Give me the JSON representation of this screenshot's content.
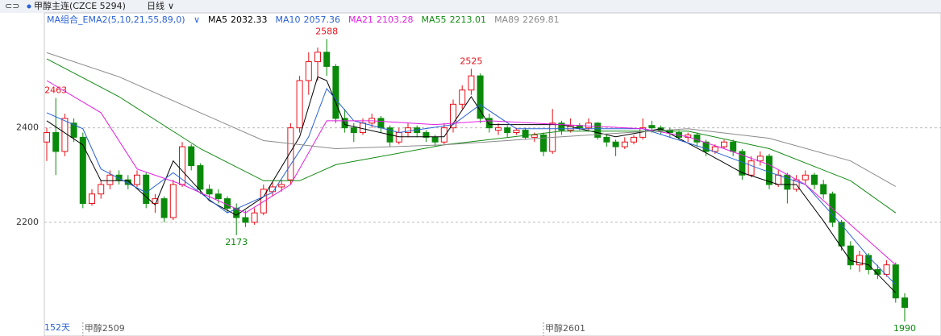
{
  "chart_data": {
    "type": "candlestick",
    "title": "甲醇主连(CZCE 5294)",
    "period": "日线",
    "indicator": "MA组合_EMA2(5,10,21,55,89,0)",
    "count_label": "152天",
    "up_color": "#e8101a",
    "down_color": "#0a8a0a",
    "ylim": [
      1985,
      2645
    ],
    "yticks": [
      2200,
      2400
    ],
    "grid": true,
    "categories": [
      null,
      null,
      null,
      null,
      "甲醇2509",
      null,
      null,
      null,
      null,
      null,
      null,
      null,
      null,
      null,
      null,
      null,
      null,
      null,
      null,
      null,
      null,
      null,
      null,
      null,
      null,
      null,
      null,
      null,
      null,
      null,
      null,
      null,
      null,
      null,
      null,
      null,
      null,
      null,
      null,
      null,
      null,
      null,
      null,
      null,
      null,
      null,
      null,
      null,
      null,
      null,
      null,
      null,
      null,
      null,
      null,
      "甲醇2601",
      null,
      null,
      null,
      null,
      null,
      null,
      null,
      null,
      null,
      null,
      null,
      null,
      null,
      null,
      null,
      null,
      null,
      null,
      null,
      null,
      null,
      null,
      null,
      null,
      null,
      null,
      null,
      null,
      null,
      null,
      null,
      null,
      null,
      null,
      null,
      null,
      null,
      null,
      null,
      null
    ],
    "candles": [
      [
        2370,
        2400,
        2330,
        2390
      ],
      [
        2390,
        2463,
        2300,
        2350
      ],
      [
        2350,
        2430,
        2340,
        2420
      ],
      [
        2410,
        2420,
        2370,
        2380
      ],
      [
        2380,
        2390,
        2230,
        2240
      ],
      [
        2240,
        2270,
        2235,
        2260
      ],
      [
        2260,
        2290,
        2250,
        2280
      ],
      [
        2280,
        2310,
        2270,
        2300
      ],
      [
        2300,
        2310,
        2280,
        2290
      ],
      [
        2290,
        2300,
        2270,
        2280
      ],
      [
        2280,
        2310,
        2275,
        2300
      ],
      [
        2300,
        2305,
        2230,
        2240
      ],
      [
        2240,
        2260,
        2220,
        2250
      ],
      [
        2250,
        2255,
        2200,
        2210
      ],
      [
        2210,
        2290,
        2205,
        2280
      ],
      [
        2280,
        2370,
        2275,
        2360
      ],
      [
        2360,
        2365,
        2310,
        2320
      ],
      [
        2320,
        2325,
        2260,
        2270
      ],
      [
        2270,
        2280,
        2250,
        2260
      ],
      [
        2260,
        2270,
        2240,
        2250
      ],
      [
        2250,
        2255,
        2220,
        2230
      ],
      [
        2230,
        2240,
        2173,
        2210
      ],
      [
        2210,
        2225,
        2190,
        2200
      ],
      [
        2200,
        2230,
        2195,
        2220
      ],
      [
        2220,
        2280,
        2215,
        2270
      ],
      [
        2265,
        2285,
        2255,
        2275
      ],
      [
        2275,
        2290,
        2265,
        2280
      ],
      [
        2290,
        2410,
        2280,
        2400
      ],
      [
        2400,
        2510,
        2390,
        2500
      ],
      [
        2500,
        2560,
        2470,
        2540
      ],
      [
        2540,
        2570,
        2500,
        2560
      ],
      [
        2560,
        2588,
        2510,
        2530
      ],
      [
        2530,
        2535,
        2410,
        2420
      ],
      [
        2420,
        2440,
        2390,
        2400
      ],
      [
        2400,
        2410,
        2370,
        2390
      ],
      [
        2390,
        2420,
        2385,
        2410
      ],
      [
        2410,
        2430,
        2400,
        2420
      ],
      [
        2420,
        2425,
        2390,
        2400
      ],
      [
        2400,
        2405,
        2360,
        2370
      ],
      [
        2370,
        2400,
        2365,
        2390
      ],
      [
        2390,
        2410,
        2380,
        2400
      ],
      [
        2400,
        2405,
        2380,
        2390
      ],
      [
        2390,
        2395,
        2370,
        2380
      ],
      [
        2380,
        2385,
        2360,
        2370
      ],
      [
        2370,
        2410,
        2365,
        2400
      ],
      [
        2400,
        2460,
        2390,
        2450
      ],
      [
        2450,
        2490,
        2440,
        2480
      ],
      [
        2480,
        2525,
        2470,
        2510
      ],
      [
        2510,
        2515,
        2410,
        2420
      ],
      [
        2420,
        2430,
        2390,
        2400
      ],
      [
        2395,
        2410,
        2385,
        2400
      ],
      [
        2400,
        2405,
        2380,
        2390
      ],
      [
        2390,
        2400,
        2385,
        2395
      ],
      [
        2395,
        2400,
        2375,
        2380
      ],
      [
        2380,
        2390,
        2370,
        2385
      ],
      [
        2385,
        2390,
        2340,
        2350
      ],
      [
        2350,
        2440,
        2345,
        2410
      ],
      [
        2410,
        2415,
        2385,
        2395
      ],
      [
        2395,
        2420,
        2390,
        2405
      ],
      [
        2405,
        2410,
        2395,
        2400
      ],
      [
        2400,
        2420,
        2395,
        2410
      ],
      [
        2410,
        2412,
        2375,
        2380
      ],
      [
        2380,
        2385,
        2360,
        2370
      ],
      [
        2370,
        2375,
        2340,
        2360
      ],
      [
        2360,
        2380,
        2355,
        2370
      ],
      [
        2370,
        2385,
        2365,
        2380
      ],
      [
        2380,
        2420,
        2375,
        2400
      ],
      [
        2405,
        2415,
        2390,
        2400
      ],
      [
        2400,
        2405,
        2385,
        2395
      ],
      [
        2395,
        2400,
        2380,
        2390
      ],
      [
        2390,
        2395,
        2375,
        2380
      ],
      [
        2380,
        2390,
        2370,
        2385
      ],
      [
        2385,
        2390,
        2360,
        2370
      ],
      [
        2370,
        2375,
        2340,
        2350
      ],
      [
        2350,
        2365,
        2345,
        2360
      ],
      [
        2360,
        2375,
        2355,
        2370
      ],
      [
        2370,
        2375,
        2340,
        2350
      ],
      [
        2350,
        2355,
        2290,
        2300
      ],
      [
        2300,
        2340,
        2295,
        2330
      ],
      [
        2330,
        2350,
        2320,
        2340
      ],
      [
        2340,
        2345,
        2270,
        2280
      ],
      [
        2280,
        2310,
        2275,
        2300
      ],
      [
        2300,
        2305,
        2240,
        2270
      ],
      [
        2270,
        2300,
        2265,
        2290
      ],
      [
        2290,
        2310,
        2280,
        2300
      ],
      [
        2300,
        2305,
        2270,
        2280
      ],
      [
        2280,
        2290,
        2250,
        2260
      ],
      [
        2260,
        2265,
        2190,
        2200
      ],
      [
        2200,
        2205,
        2140,
        2150
      ],
      [
        2150,
        2160,
        2100,
        2110
      ],
      [
        2110,
        2140,
        2095,
        2130
      ],
      [
        2130,
        2135,
        2090,
        2100
      ],
      [
        2100,
        2110,
        2080,
        2090
      ],
      [
        2090,
        2120,
        2085,
        2110
      ],
      [
        2110,
        2115,
        2030,
        2040
      ],
      [
        2040,
        2050,
        1990,
        2020
      ]
    ],
    "annotations": [
      {
        "candle": 1,
        "field": "high"
      },
      {
        "candle": 21,
        "field": "low"
      },
      {
        "candle": 31,
        "field": "high"
      },
      {
        "candle": 47,
        "field": "high"
      },
      {
        "candle": 95,
        "field": "low"
      }
    ],
    "ma_lines": [
      {
        "name": "MA5",
        "color": "#000000",
        "latest": 2032.33,
        "x": [
          0,
          4,
          6,
          9,
          12,
          14,
          18,
          21,
          24,
          28,
          30,
          31,
          33,
          39,
          44,
          47,
          49,
          57,
          63,
          68,
          73,
          77,
          81,
          83,
          86,
          89,
          91,
          94
        ],
        "values": [
          2415,
          2364,
          2288,
          2288,
          2237,
          2330,
          2246,
          2215,
          2254,
          2381,
          2508,
          2500,
          2407,
          2381,
          2381,
          2466,
          2407,
          2407,
          2381,
          2398,
          2347,
          2305,
          2280,
          2280,
          2203,
          2119,
          2110,
          2051
        ]
      },
      {
        "name": "MA10",
        "color": "#2a62d6",
        "latest": 2057.36,
        "x": [
          0,
          4,
          6,
          11,
          14,
          20,
          25,
          29,
          31,
          34,
          39,
          45,
          48,
          52,
          59,
          66,
          73,
          79,
          84,
          88,
          91,
          94
        ],
        "values": [
          2432,
          2398,
          2313,
          2263,
          2305,
          2220,
          2263,
          2381,
          2483,
          2415,
          2390,
          2407,
          2449,
          2398,
          2398,
          2398,
          2356,
          2313,
          2280,
          2195,
          2127,
          2068
        ]
      },
      {
        "name": "MA21",
        "color": "#e21ee2",
        "latest": 2103.28,
        "x": [
          0,
          6,
          10,
          15,
          22,
          27,
          31,
          36,
          43,
          49,
          57,
          66,
          71,
          75,
          80,
          84,
          89,
          94
        ],
        "values": [
          2500,
          2432,
          2313,
          2280,
          2220,
          2280,
          2415,
          2415,
          2407,
          2415,
          2407,
          2398,
          2381,
          2356,
          2322,
          2280,
          2195,
          2110
        ]
      },
      {
        "name": "MA55",
        "color": "#138a13",
        "latest": 2213.01,
        "x": [
          0,
          8,
          17,
          24,
          28,
          32,
          44,
          57,
          71,
          80,
          89,
          94
        ],
        "values": [
          2546,
          2466,
          2356,
          2288,
          2288,
          2322,
          2364,
          2393,
          2393,
          2356,
          2288,
          2220
        ]
      },
      {
        "name": "MA89",
        "color": "#8a8a8a",
        "latest": 2269.81,
        "x": [
          0,
          8,
          17,
          24,
          32,
          44,
          57,
          71,
          80,
          89,
          94
        ],
        "values": [
          2559,
          2508,
          2432,
          2373,
          2356,
          2364,
          2381,
          2398,
          2378,
          2330,
          2276
        ]
      }
    ]
  }
}
